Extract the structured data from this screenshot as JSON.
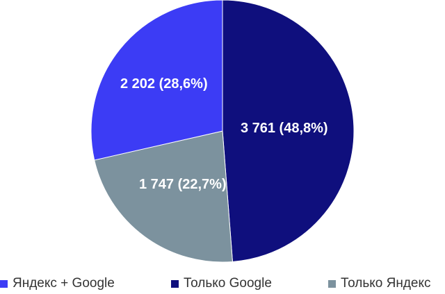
{
  "chart_data": {
    "type": "pie",
    "title": "",
    "categories": [
      "Яндекс + Google",
      "Только Google",
      "Только Яндекс"
    ],
    "values": [
      2202,
      3761,
      1747
    ],
    "percent_labels": [
      "2 202 (28,6%)",
      "3 761 (48,8%)",
      "1 747 (22,7%)"
    ],
    "colors": [
      "#3c3cf5",
      "#0f0f7d",
      "#7c929e"
    ],
    "legend_position": "bottom",
    "start_angle_deg": 0,
    "direction": "clockwise",
    "slice_order": [
      1,
      2,
      0
    ]
  },
  "legend": {
    "items": [
      {
        "label": "Яндекс + Google",
        "color": "#3c3cf5"
      },
      {
        "label": "Только Google",
        "color": "#0f0f7d"
      },
      {
        "label": "Только Яндекс",
        "color": "#7c929e"
      }
    ]
  }
}
